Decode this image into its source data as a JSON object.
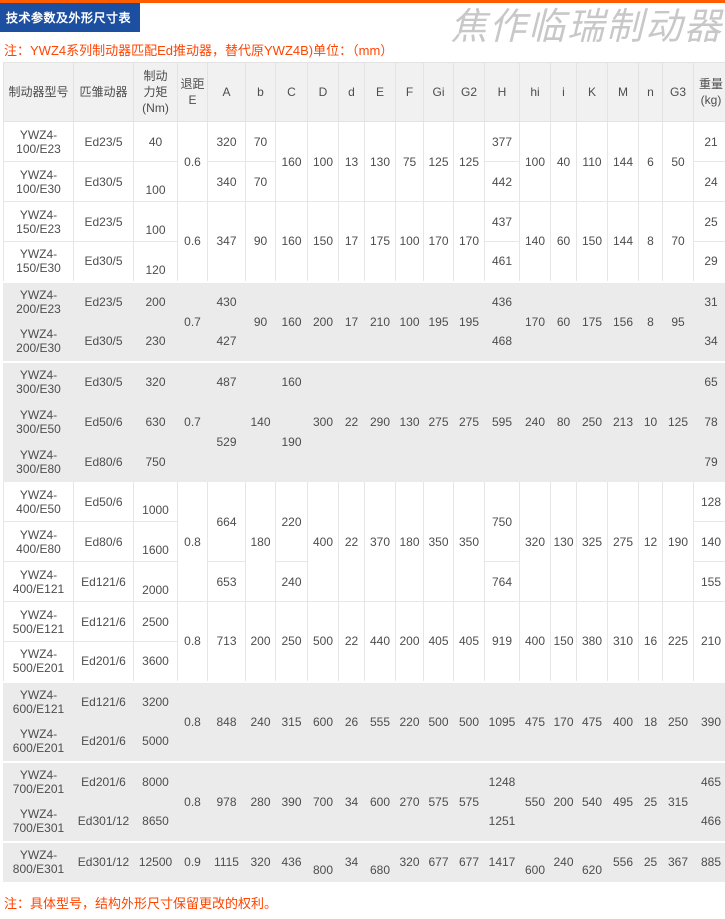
{
  "page": {
    "title": "技术参数及外形尺寸表",
    "watermark": "焦作临瑞制动器",
    "note_top": "注：YWZ4系列制动器匹配Ed推动器，替代原YWZ4B)单位：（mm）",
    "note_bottom": "注：具体型号，结构外形尺寸保留更改的权利。",
    "colors": {
      "accent_blue": "#1d4fa0",
      "accent_orange": "#ff5c00",
      "note_red": "#ff4400",
      "band_gray": "#ebebeb",
      "border_gray": "#e6e6e6",
      "watermark_gray": "#c8c8c8"
    }
  },
  "table": {
    "headers": [
      "制动器型号",
      "匹雏动器",
      "制动\n力矩\n(Nm)",
      "退距\nE",
      "A",
      "b",
      "C",
      "D",
      "d",
      "E",
      "F",
      "Gi",
      "G2",
      "H",
      "hi",
      "i",
      "K",
      "M",
      "n",
      "G3",
      "重量\n(kg)"
    ],
    "bands": [
      {
        "name": "ywz4-100",
        "shade": "white",
        "rows": [
          [
            {
              "t": "YWZ4-\n100/E23"
            },
            {
              "t": "Ed23/5"
            },
            {
              "t": "40"
            },
            {
              "t": "0.6",
              "rs": 2
            },
            {
              "t": "320"
            },
            {
              "t": "70"
            },
            {
              "t": "160",
              "rs": 2
            },
            {
              "t": "100",
              "rs": 2
            },
            {
              "t": "13",
              "rs": 2
            },
            {
              "t": "130",
              "rs": 2
            },
            {
              "t": "75",
              "rs": 2
            },
            {
              "t": "125",
              "rs": 2
            },
            {
              "t": "125",
              "rs": 2
            },
            {
              "t": "377"
            },
            {
              "t": "100",
              "rs": 2
            },
            {
              "t": "40",
              "rs": 2
            },
            {
              "t": "110",
              "rs": 2
            },
            {
              "t": "144",
              "rs": 2
            },
            {
              "t": "6",
              "rs": 2
            },
            {
              "t": "50",
              "rs": 2
            },
            {
              "t": "21"
            }
          ],
          [
            {
              "t": "YWZ4-\n100/E30"
            },
            {
              "t": "Ed30/5"
            },
            {
              "t": "100",
              "va": "b"
            },
            {
              "t": "340"
            },
            {
              "t": "70"
            },
            {
              "t": "442"
            },
            {
              "t": "24"
            }
          ]
        ]
      },
      {
        "name": "ywz4-150",
        "shade": "white",
        "rows": [
          [
            {
              "t": "YWZ4-\n150/E23"
            },
            {
              "t": "Ed23/5"
            },
            {
              "t": "100",
              "va": "b"
            },
            {
              "t": "0.6",
              "rs": 2
            },
            {
              "t": "347",
              "rs": 2
            },
            {
              "t": "90",
              "rs": 2
            },
            {
              "t": "160",
              "rs": 2
            },
            {
              "t": "150",
              "rs": 2
            },
            {
              "t": "17",
              "rs": 2
            },
            {
              "t": "175",
              "rs": 2
            },
            {
              "t": "100",
              "rs": 2
            },
            {
              "t": "170",
              "rs": 2
            },
            {
              "t": "170",
              "rs": 2
            },
            {
              "t": "437"
            },
            {
              "t": "140",
              "rs": 2
            },
            {
              "t": "60",
              "rs": 2
            },
            {
              "t": "150",
              "rs": 2
            },
            {
              "t": "144",
              "rs": 2
            },
            {
              "t": "8",
              "rs": 2
            },
            {
              "t": "70",
              "rs": 2
            },
            {
              "t": "25"
            }
          ],
          [
            {
              "t": "YWZ4-\n150/E30"
            },
            {
              "t": "Ed30/5"
            },
            {
              "t": "120",
              "va": "b"
            },
            {
              "t": "461"
            },
            {
              "t": "29"
            }
          ]
        ]
      },
      {
        "name": "ywz4-200",
        "shade": "gray",
        "rows": [
          [
            {
              "t": "YWZ4-\n200/E23"
            },
            {
              "t": "Ed23/5"
            },
            {
              "t": "200"
            },
            {
              "t": "0.7",
              "rs": 2
            },
            {
              "t": "430"
            },
            {
              "t": "90",
              "rs": 2
            },
            {
              "t": "160",
              "rs": 2
            },
            {
              "t": "200",
              "rs": 2
            },
            {
              "t": "17",
              "rs": 2
            },
            {
              "t": "210",
              "rs": 2
            },
            {
              "t": "100",
              "rs": 2
            },
            {
              "t": "195",
              "rs": 2
            },
            {
              "t": "195",
              "rs": 2
            },
            {
              "t": "436"
            },
            {
              "t": "170",
              "rs": 2
            },
            {
              "t": "60",
              "rs": 2
            },
            {
              "t": "175",
              "rs": 2
            },
            {
              "t": "156",
              "rs": 2
            },
            {
              "t": "8",
              "rs": 2
            },
            {
              "t": "95",
              "rs": 2
            },
            {
              "t": "31"
            }
          ],
          [
            {
              "t": "YWZ4-\n200/E30"
            },
            {
              "t": "Ed30/5"
            },
            {
              "t": "230"
            },
            {
              "t": "427"
            },
            {
              "t": "468"
            },
            {
              "t": "34"
            }
          ]
        ]
      },
      {
        "name": "ywz4-300",
        "shade": "gray",
        "rows": [
          [
            {
              "t": "YWZ4-\n300/E30"
            },
            {
              "t": "Ed30/5"
            },
            {
              "t": "320"
            },
            {
              "t": "0.7",
              "rs": 3
            },
            {
              "t": "487"
            },
            {
              "t": "140",
              "rs": 3
            },
            {
              "t": "160"
            },
            {
              "t": "300",
              "rs": 3
            },
            {
              "t": "22",
              "rs": 3
            },
            {
              "t": "290",
              "rs": 3
            },
            {
              "t": "130",
              "rs": 3
            },
            {
              "t": "275",
              "rs": 3
            },
            {
              "t": "275",
              "rs": 3
            },
            {
              "t": "595",
              "rs": 3
            },
            {
              "t": "240",
              "rs": 3
            },
            {
              "t": "80",
              "rs": 3
            },
            {
              "t": "250",
              "rs": 3
            },
            {
              "t": "213",
              "rs": 3
            },
            {
              "t": "10",
              "rs": 3
            },
            {
              "t": "125",
              "rs": 3
            },
            {
              "t": "65"
            }
          ],
          [
            {
              "t": "YWZ4-\n300/E50"
            },
            {
              "t": "Ed50/6"
            },
            {
              "t": "630"
            },
            {
              "t": "529",
              "rs": 2
            },
            {
              "t": "190",
              "rs": 2
            },
            {
              "t": "78"
            }
          ],
          [
            {
              "t": "YWZ4-\n300/E80"
            },
            {
              "t": "Ed80/6"
            },
            {
              "t": "750"
            },
            {
              "t": "79"
            }
          ]
        ]
      },
      {
        "name": "ywz4-400",
        "shade": "white",
        "rows": [
          [
            {
              "t": "YWZ4-\n400/E50"
            },
            {
              "t": "Ed50/6"
            },
            {
              "t": "1000",
              "va": "b"
            },
            {
              "t": "0.8",
              "rs": 3
            },
            {
              "t": "664",
              "rs": 2
            },
            {
              "t": "180",
              "rs": 3
            },
            {
              "t": "220",
              "rs": 2
            },
            {
              "t": "400",
              "rs": 3
            },
            {
              "t": "22",
              "rs": 3
            },
            {
              "t": "370",
              "rs": 3
            },
            {
              "t": "180",
              "rs": 3
            },
            {
              "t": "350",
              "rs": 3
            },
            {
              "t": "350",
              "rs": 3
            },
            {
              "t": "750",
              "rs": 2
            },
            {
              "t": "320",
              "rs": 3
            },
            {
              "t": "130",
              "rs": 3
            },
            {
              "t": "325",
              "rs": 3
            },
            {
              "t": "275",
              "rs": 3
            },
            {
              "t": "12",
              "rs": 3
            },
            {
              "t": "190",
              "rs": 3
            },
            {
              "t": "128"
            }
          ],
          [
            {
              "t": "YWZ4-\n400/E80"
            },
            {
              "t": "Ed80/6"
            },
            {
              "t": "1600",
              "va": "b"
            },
            {
              "t": "140"
            }
          ],
          [
            {
              "t": "YWZ4-\n400/E121"
            },
            {
              "t": "Ed121/6"
            },
            {
              "t": "2000",
              "va": "b"
            },
            {
              "t": "653"
            },
            {
              "t": "240"
            },
            {
              "t": "764"
            },
            {
              "t": "155"
            }
          ]
        ]
      },
      {
        "name": "ywz4-500",
        "shade": "white",
        "rows": [
          [
            {
              "t": "YWZ4-\n500/E121"
            },
            {
              "t": "Ed121/6"
            },
            {
              "t": "2500"
            },
            {
              "t": "0.8",
              "rs": 2
            },
            {
              "t": "713",
              "rs": 2
            },
            {
              "t": "200",
              "rs": 2
            },
            {
              "t": "250",
              "rs": 2
            },
            {
              "t": "500",
              "rs": 2
            },
            {
              "t": "22",
              "rs": 2
            },
            {
              "t": "440",
              "rs": 2
            },
            {
              "t": "200",
              "rs": 2
            },
            {
              "t": "405",
              "rs": 2
            },
            {
              "t": "405",
              "rs": 2
            },
            {
              "t": "919",
              "rs": 2
            },
            {
              "t": "400",
              "rs": 2
            },
            {
              "t": "150",
              "rs": 2
            },
            {
              "t": "380",
              "rs": 2
            },
            {
              "t": "310",
              "rs": 2
            },
            {
              "t": "16",
              "rs": 2
            },
            {
              "t": "225",
              "rs": 2
            },
            {
              "t": "210",
              "rs": 2
            }
          ],
          [
            {
              "t": "YWZ4-\n500/E201"
            },
            {
              "t": "Ed201/6"
            },
            {
              "t": "3600"
            }
          ]
        ]
      },
      {
        "name": "ywz4-600",
        "shade": "gray",
        "rows": [
          [
            {
              "t": "YWZ4-\n600/E121"
            },
            {
              "t": "Ed121/6"
            },
            {
              "t": "3200"
            },
            {
              "t": "0.8",
              "rs": 2
            },
            {
              "t": "848",
              "rs": 2
            },
            {
              "t": "240",
              "rs": 2
            },
            {
              "t": "315",
              "rs": 2
            },
            {
              "t": "600",
              "rs": 2
            },
            {
              "t": "26",
              "rs": 2
            },
            {
              "t": "555",
              "rs": 2
            },
            {
              "t": "220",
              "rs": 2
            },
            {
              "t": "500",
              "rs": 2
            },
            {
              "t": "500",
              "rs": 2
            },
            {
              "t": "1095",
              "rs": 2
            },
            {
              "t": "475",
              "rs": 2
            },
            {
              "t": "170",
              "rs": 2
            },
            {
              "t": "475",
              "rs": 2
            },
            {
              "t": "400",
              "rs": 2
            },
            {
              "t": "18",
              "rs": 2
            },
            {
              "t": "250",
              "rs": 2
            },
            {
              "t": "390",
              "rs": 2
            }
          ],
          [
            {
              "t": "YWZ4-\n600/E201"
            },
            {
              "t": "Ed201/6"
            },
            {
              "t": "5000"
            }
          ]
        ]
      },
      {
        "name": "ywz4-700",
        "shade": "gray",
        "rows": [
          [
            {
              "t": "YWZ4-\n700/E201"
            },
            {
              "t": "Ed201/6"
            },
            {
              "t": "8000"
            },
            {
              "t": "0.8",
              "rs": 2
            },
            {
              "t": "978",
              "rs": 2
            },
            {
              "t": "280",
              "rs": 2
            },
            {
              "t": "390",
              "rs": 2
            },
            {
              "t": "700",
              "rs": 2
            },
            {
              "t": "34",
              "rs": 2
            },
            {
              "t": "600",
              "rs": 2
            },
            {
              "t": "270",
              "rs": 2
            },
            {
              "t": "575",
              "rs": 2
            },
            {
              "t": "575",
              "rs": 2
            },
            {
              "t": "1248"
            },
            {
              "t": "550",
              "rs": 2
            },
            {
              "t": "200",
              "rs": 2
            },
            {
              "t": "540",
              "rs": 2
            },
            {
              "t": "495",
              "rs": 2
            },
            {
              "t": "25",
              "rs": 2
            },
            {
              "t": "315",
              "rs": 2
            },
            {
              "t": "465"
            }
          ],
          [
            {
              "t": "YWZ4-\n700/E301"
            },
            {
              "t": "Ed301/12"
            },
            {
              "t": "8650"
            },
            {
              "t": "1251"
            },
            {
              "t": "466"
            }
          ]
        ]
      },
      {
        "name": "ywz4-800",
        "shade": "gray",
        "rows": [
          [
            {
              "t": "YWZ4-\n800/E301"
            },
            {
              "t": "Ed301/12"
            },
            {
              "t": "12500"
            },
            {
              "t": "0.9"
            },
            {
              "t": "1115"
            },
            {
              "t": "320"
            },
            {
              "t": "436"
            },
            {
              "t": "800",
              "va": "b"
            },
            {
              "t": "34"
            },
            {
              "t": "680",
              "va": "b"
            },
            {
              "t": "320"
            },
            {
              "t": "677"
            },
            {
              "t": "677"
            },
            {
              "t": "1417"
            },
            {
              "t": "600",
              "va": "b"
            },
            {
              "t": "240"
            },
            {
              "t": "620",
              "va": "b"
            },
            {
              "t": "556"
            },
            {
              "t": "25"
            },
            {
              "t": "367"
            },
            {
              "t": "885"
            }
          ]
        ]
      }
    ]
  }
}
